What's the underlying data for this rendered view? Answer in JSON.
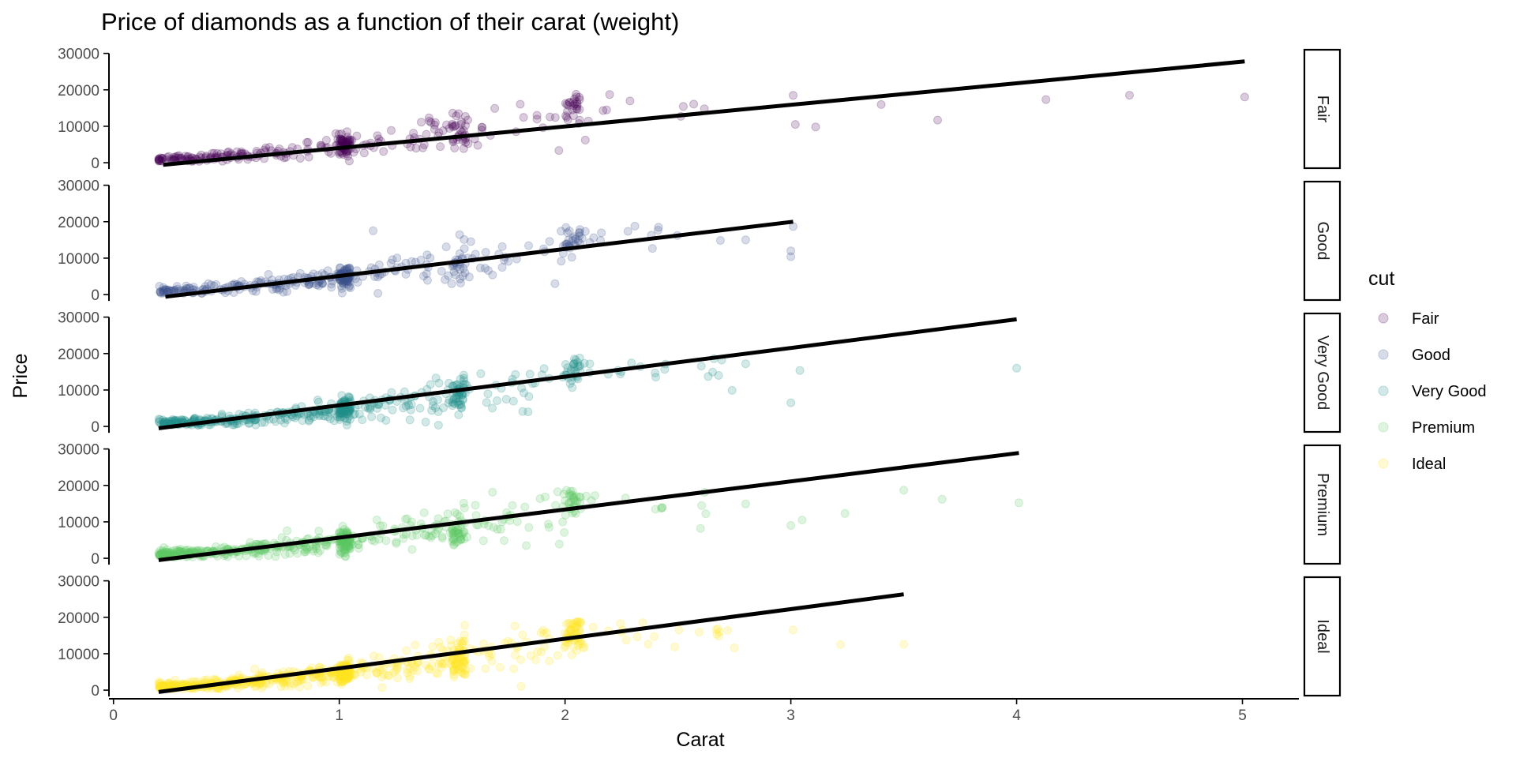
{
  "chart_data": {
    "type": "scatter",
    "title": "Price of diamonds as a function of their carat (weight)",
    "xlabel": "Carat",
    "ylabel": "Price",
    "xlim": [
      -0.02,
      5.25
    ],
    "ylim": [
      -1500,
      31000
    ],
    "x_ticks": [
      0,
      1,
      2,
      3,
      4,
      5
    ],
    "y_ticks": [
      0,
      10000,
      20000,
      30000
    ],
    "grid": false,
    "legend": {
      "title": "cut",
      "position": "right"
    },
    "facet_by": "cut",
    "series": [
      {
        "name": "Fair",
        "color": "#440154",
        "opacity": 0.2,
        "x_range": [
          0.22,
          5.01
        ],
        "fit_line": {
          "x": [
            0.22,
            5.01
          ],
          "y": [
            -600,
            27800
          ]
        },
        "notable_points": [
          {
            "x": 3.01,
            "y": 18500
          },
          {
            "x": 3.02,
            "y": 10500
          },
          {
            "x": 3.11,
            "y": 9800
          },
          {
            "x": 3.4,
            "y": 15960
          },
          {
            "x": 3.65,
            "y": 11700
          },
          {
            "x": 4.13,
            "y": 17330
          },
          {
            "x": 4.5,
            "y": 18530
          },
          {
            "x": 5.01,
            "y": 18020
          }
        ]
      },
      {
        "name": "Good",
        "color": "#3b528b",
        "opacity": 0.2,
        "x_range": [
          0.23,
          3.01
        ],
        "fit_line": {
          "x": [
            0.23,
            3.01
          ],
          "y": [
            -600,
            20000
          ]
        },
        "notable_points": [
          {
            "x": 3.01,
            "y": 18700
          },
          {
            "x": 3.0,
            "y": 12000
          },
          {
            "x": 3.0,
            "y": 10400
          },
          {
            "x": 2.8,
            "y": 15000
          },
          {
            "x": 1.15,
            "y": 17500
          }
        ]
      },
      {
        "name": "Very Good",
        "color": "#21908c",
        "opacity": 0.2,
        "x_range": [
          0.2,
          4.0
        ],
        "fit_line": {
          "x": [
            0.2,
            4.0
          ],
          "y": [
            -500,
            29400
          ]
        },
        "notable_points": [
          {
            "x": 4.0,
            "y": 15980
          },
          {
            "x": 3.04,
            "y": 15350
          },
          {
            "x": 3.0,
            "y": 6500
          },
          {
            "x": 2.8,
            "y": 17200
          },
          {
            "x": 2.68,
            "y": 14000
          },
          {
            "x": 2.74,
            "y": 9900
          }
        ]
      },
      {
        "name": "Premium",
        "color": "#5dc863",
        "opacity": 0.2,
        "x_range": [
          0.2,
          4.01
        ],
        "fit_line": {
          "x": [
            0.2,
            4.01
          ],
          "y": [
            -500,
            28900
          ]
        },
        "notable_points": [
          {
            "x": 4.01,
            "y": 15220
          },
          {
            "x": 3.67,
            "y": 16200
          },
          {
            "x": 3.5,
            "y": 18700
          },
          {
            "x": 3.24,
            "y": 12300
          },
          {
            "x": 3.05,
            "y": 10500
          },
          {
            "x": 3.0,
            "y": 9000
          },
          {
            "x": 2.8,
            "y": 14900
          },
          {
            "x": 2.6,
            "y": 8200
          }
        ]
      },
      {
        "name": "Ideal",
        "color": "#fde725",
        "opacity": 0.2,
        "x_range": [
          0.2,
          3.5
        ],
        "fit_line": {
          "x": [
            0.2,
            3.5
          ],
          "y": [
            -500,
            26300
          ]
        },
        "notable_points": [
          {
            "x": 3.5,
            "y": 12590
          },
          {
            "x": 3.22,
            "y": 12500
          },
          {
            "x": 3.01,
            "y": 16500
          },
          {
            "x": 2.75,
            "y": 11600
          },
          {
            "x": 2.72,
            "y": 16400
          }
        ]
      }
    ]
  }
}
